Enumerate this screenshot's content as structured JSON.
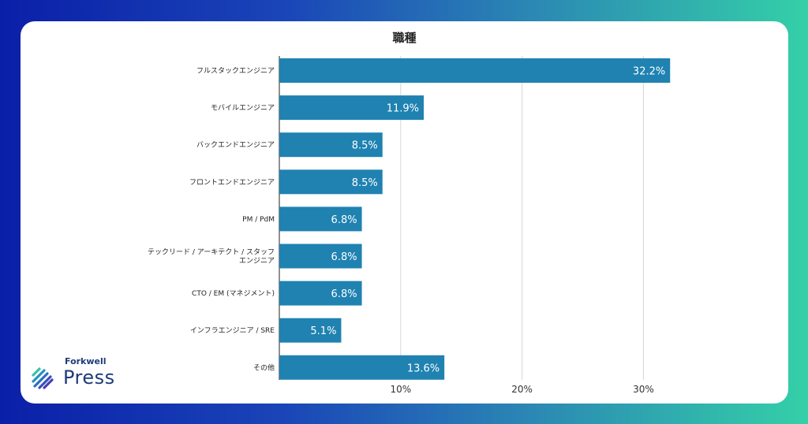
{
  "chart_data": {
    "type": "bar",
    "orientation": "horizontal",
    "title": "職種",
    "categories": [
      "フルスタックエンジニア",
      "モバイルエンジニア",
      "バックエンドエンジニア",
      "フロントエンドエンジニア",
      "PM / PdM",
      "テックリード / アーキテクト / スタッフ\nエンジニア",
      "CTO / EM (マネジメント)",
      "インフラエンジニア / SRE",
      "その他"
    ],
    "values": [
      32.2,
      11.9,
      8.5,
      8.5,
      6.8,
      6.8,
      6.8,
      5.1,
      13.6
    ],
    "value_labels": [
      "32.2%",
      "11.9%",
      "8.5%",
      "8.5%",
      "6.8%",
      "6.8%",
      "6.8%",
      "5.1%",
      "13.6%"
    ],
    "xticks": [
      10,
      20,
      30
    ],
    "xtick_labels": [
      "10%",
      "20%",
      "30%"
    ],
    "xlim": [
      0,
      40
    ],
    "grid": true,
    "bar_color": "#1f82b1",
    "grid_color": "#d6d6d6"
  },
  "logo": {
    "small": "Forkwell",
    "big": "Press"
  }
}
